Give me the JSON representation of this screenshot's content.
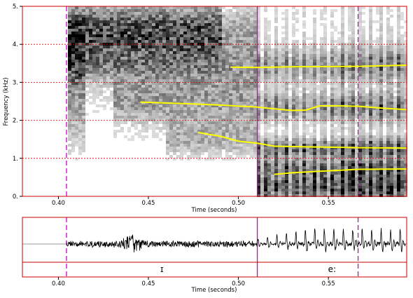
{
  "chart_data": [
    {
      "type": "heatmap",
      "kind": "spectrogram",
      "xlabel": "Time (seconds)",
      "ylabel": "Frequency (kHz)",
      "xlim": [
        0.38,
        0.5935
      ],
      "ylim": [
        0,
        5
      ],
      "x_ticks": [
        0.4,
        0.45,
        0.5,
        0.55
      ],
      "x_tick_labels": [
        "0.40",
        "0.45",
        "0.50",
        "0.55"
      ],
      "y_ticks": [
        0,
        1,
        2,
        3,
        4,
        5
      ],
      "y_tick_labels": [
        "0.",
        "1.",
        "2.",
        "3.",
        "4.",
        "5."
      ],
      "grid": "horizontal dotted red at each kHz",
      "colormap": "grayscale (dark = high energy)",
      "formant_color": "#ffff00",
      "formant_tracks": [
        {
          "points": [
            [
              0.4455,
              2.48
            ],
            [
              0.47,
              2.44
            ],
            [
              0.49,
              2.4
            ],
            [
              0.51,
              2.35
            ],
            [
              0.52,
              2.3
            ],
            [
              0.53,
              2.26
            ],
            [
              0.5375,
              2.27
            ],
            [
              0.545,
              2.38
            ],
            [
              0.555,
              2.38
            ],
            [
              0.5665,
              2.37
            ],
            [
              0.58,
              2.32
            ],
            [
              0.5935,
              2.28
            ]
          ]
        },
        {
          "points": [
            [
              0.4955,
              3.4
            ],
            [
              0.51,
              3.39
            ],
            [
              0.52,
              3.4
            ],
            [
              0.53,
              3.41
            ],
            [
              0.5665,
              3.42
            ],
            [
              0.5935,
              3.45
            ]
          ]
        },
        {
          "points": [
            [
              0.4775,
              1.68
            ],
            [
              0.49,
              1.58
            ],
            [
              0.5,
              1.45
            ],
            [
              0.51,
              1.4
            ],
            [
              0.52,
              1.32
            ],
            [
              0.54,
              1.3
            ],
            [
              0.5665,
              1.28
            ],
            [
              0.5935,
              1.27
            ]
          ]
        },
        {
          "points": [
            [
              0.52,
              0.58
            ],
            [
              0.53,
              0.62
            ],
            [
              0.545,
              0.66
            ],
            [
              0.5665,
              0.71
            ],
            [
              0.5935,
              0.72
            ]
          ]
        }
      ]
    },
    {
      "type": "line",
      "kind": "waveform",
      "xlabel": "Time (seconds)",
      "xlim": [
        0.38,
        0.5935
      ],
      "x_ticks": [
        0.4,
        0.45,
        0.5,
        0.55
      ],
      "x_tick_labels": [
        "0.40",
        "0.45",
        "0.50",
        "0.55"
      ],
      "trace_color": "#000000",
      "baseline_color": "#999999"
    }
  ],
  "segmentation": {
    "intervals": [
      {
        "label": "ɪ",
        "start": 0.4045,
        "end": 0.5105
      },
      {
        "label": "e:",
        "start": 0.5105,
        "end": 0.5935
      }
    ],
    "boundaries": [
      {
        "time": 0.4045,
        "style": "dashed",
        "color": "#cc00cc"
      },
      {
        "time": 0.5105,
        "style": "solid",
        "color": "#cc00cc"
      },
      {
        "time": 0.5665,
        "style": "dashed",
        "color": "#cc00cc"
      }
    ]
  },
  "colors": {
    "frame": "#cc0000",
    "grid": "#cc0000",
    "boundary": "#cc00cc"
  }
}
